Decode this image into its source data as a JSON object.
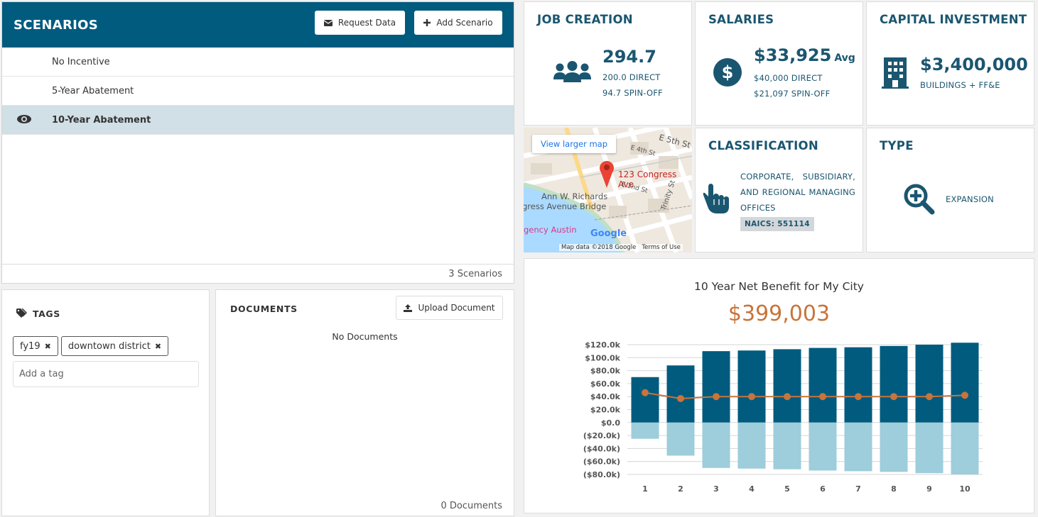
{
  "scenarios": {
    "title": "SCENARIOS",
    "request_label": "Request Data",
    "add_label": "Add Scenario",
    "items": [
      {
        "label": "No Incentive"
      },
      {
        "label": "5-Year Abatement"
      },
      {
        "label": "10-Year Abatement"
      }
    ],
    "count_label": "3 Scenarios"
  },
  "tags": {
    "title": "TAGS",
    "chips": [
      {
        "label": "fy19"
      },
      {
        "label": "downtown district"
      }
    ],
    "placeholder": "Add a tag"
  },
  "documents": {
    "title": "DOCUMENTS",
    "upload_label": "Upload Document",
    "empty_label": "No Documents",
    "count_label": "0 Documents"
  },
  "job_creation": {
    "title": "JOB CREATION",
    "total": "294.7",
    "direct": "200.0 DIRECT",
    "spinoff": "94.7 SPIN-OFF"
  },
  "salaries": {
    "title": "SALARIES",
    "avg_value": "$33,925",
    "avg_label": "Avg",
    "direct": "$40,000 DIRECT",
    "spinoff": "$21,097 SPIN-OFF"
  },
  "capital": {
    "title": "CAPITAL INVESTMENT",
    "value": "$3,400,000",
    "sub": "BUILDINGS + FF&E"
  },
  "map": {
    "larger_map": "View larger map",
    "pin_label": "123 Congress Ave",
    "street_e5th": "E 5th St",
    "street_e4th": "E 4th St",
    "street_e2nd": "E 2nd St",
    "street_trinity": "Trinity St",
    "bridge_line1": "Ann W. Richards",
    "bridge_line2": "gress Avenue Bridge",
    "poi": "gency Austin",
    "google": "Google",
    "map_data": "Map data ©2018 Google",
    "terms": "Terms of Use"
  },
  "classification": {
    "title": "CLASSIFICATION",
    "text": "CORPORATE, SUBSIDIARY, AND REGIONAL MANAGING OFFICES",
    "naics": "NAICS: 551114"
  },
  "type": {
    "title": "TYPE",
    "value": "EXPANSION"
  },
  "chart_data": {
    "type": "bar",
    "title": "10 Year Net Benefit for My City",
    "subtitle": "$399,003",
    "categories": [
      "1",
      "2",
      "3",
      "4",
      "5",
      "6",
      "7",
      "8",
      "9",
      "10"
    ],
    "series": [
      {
        "kind": "bar",
        "color": "#005b7f",
        "values": [
          70,
          88,
          110,
          111,
          113,
          115,
          116,
          118,
          120,
          123
        ]
      },
      {
        "kind": "bar",
        "color": "#9ecddb",
        "values": [
          -25,
          -51,
          -70,
          -71,
          -72,
          -74,
          -75,
          -76,
          -78,
          -80
        ]
      },
      {
        "kind": "line",
        "color": "#c8743a",
        "values": [
          46,
          37,
          40,
          40,
          40,
          40,
          40,
          40,
          40,
          42
        ]
      }
    ],
    "ylim": [
      -80,
      120
    ],
    "yticks": [
      "$120.0k",
      "$100.0k",
      "$80.0k",
      "$60.0k",
      "$40.0k",
      "$20.0k",
      "$0.0",
      "($20.0k)",
      "($40.0k)",
      "($60.0k)",
      "($80.0k)"
    ],
    "ytick_values": [
      120,
      100,
      80,
      60,
      40,
      20,
      0,
      -20,
      -40,
      -60,
      -80
    ],
    "grid": true
  },
  "colors": {
    "brand": "#005b7f",
    "accent": "#c8743a",
    "light": "#9ecddb"
  }
}
